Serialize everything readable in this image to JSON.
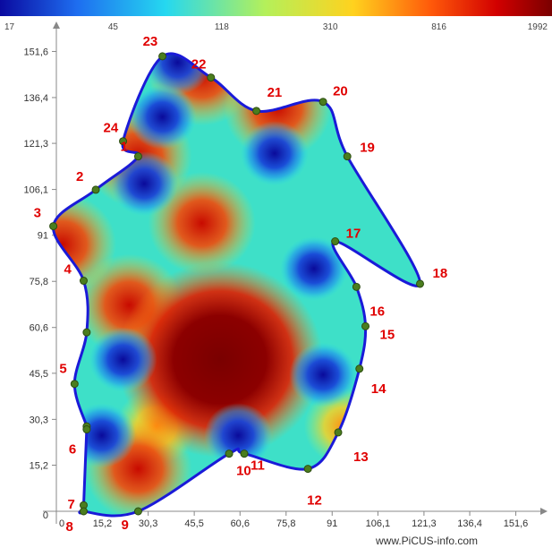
{
  "chart_data": {
    "type": "heatmap",
    "colorbar": {
      "ticks": [
        "17",
        "45",
        "118",
        "310",
        "816",
        "1992"
      ],
      "colors": [
        "#0a0aa0",
        "#1e6ef0",
        "#25d8f0",
        "#b4f05a",
        "#ffd21e",
        "#ff5a0a",
        "#d20000",
        "#7a0000"
      ]
    },
    "x_ticks": [
      0,
      15.2,
      30.3,
      45.5,
      60.6,
      75.8,
      91,
      106.1,
      121.3,
      136.4,
      151.6
    ],
    "x_tick_labels": [
      "0",
      "15,2",
      "30,3",
      "45,5",
      "60,6",
      "75,8",
      "91",
      "106,1",
      "121,3",
      "136,4",
      "151,6"
    ],
    "y_ticks": [
      0,
      15.2,
      30.3,
      45.5,
      60.6,
      75.8,
      91,
      106.1,
      121.3,
      136.4,
      151.6
    ],
    "y_tick_labels": [
      "0",
      "15,2",
      "30,3",
      "45,5",
      "60,6",
      "75,8",
      "91",
      "106,1",
      "121,3",
      "136,4",
      "151,6"
    ],
    "xlim": [
      0,
      160
    ],
    "ylim": [
      0,
      160
    ],
    "boundary_points": [
      {
        "id": "1",
        "x": 27,
        "y": 117
      },
      {
        "id": "2",
        "x": 13,
        "y": 106
      },
      {
        "id": "3",
        "x": -1,
        "y": 94
      },
      {
        "id": "4",
        "x": 9,
        "y": 76
      },
      {
        "id": "",
        "x": 10,
        "y": 59
      },
      {
        "id": "5",
        "x": 6,
        "y": 42
      },
      {
        "id": "",
        "x": 10,
        "y": 28
      },
      {
        "id": "6",
        "x": 10,
        "y": 27
      },
      {
        "id": "7",
        "x": 9,
        "y": 2
      },
      {
        "id": "8",
        "x": 9,
        "y": 0
      },
      {
        "id": "9",
        "x": 27,
        "y": 0
      },
      {
        "id": "10",
        "x": 57,
        "y": 19
      },
      {
        "id": "11",
        "x": 62,
        "y": 19
      },
      {
        "id": "12",
        "x": 83,
        "y": 14
      },
      {
        "id": "13",
        "x": 93,
        "y": 26
      },
      {
        "id": "14",
        "x": 100,
        "y": 47
      },
      {
        "id": "15",
        "x": 102,
        "y": 61
      },
      {
        "id": "16",
        "x": 99,
        "y": 74
      },
      {
        "id": "17",
        "x": 92,
        "y": 89
      },
      {
        "id": "18",
        "x": 120,
        "y": 75
      },
      {
        "id": "19",
        "x": 96,
        "y": 117
      },
      {
        "id": "20",
        "x": 88,
        "y": 135
      },
      {
        "id": "21",
        "x": 66,
        "y": 132
      },
      {
        "id": "22",
        "x": 51,
        "y": 143
      },
      {
        "id": "23",
        "x": 35,
        "y": 150
      },
      {
        "id": "24",
        "x": 22,
        "y": 122
      }
    ],
    "hotspots": [
      {
        "x": 54,
        "y": 50,
        "level": "max"
      },
      {
        "x": 48,
        "y": 95,
        "level": "high"
      },
      {
        "x": 24,
        "y": 68,
        "level": "high"
      },
      {
        "x": 27,
        "y": 14,
        "level": "high"
      },
      {
        "x": 2,
        "y": 88,
        "level": "high"
      },
      {
        "x": 27,
        "y": 117,
        "level": "high"
      },
      {
        "x": 48,
        "y": 144,
        "level": "high"
      },
      {
        "x": 73,
        "y": 133,
        "level": "high"
      },
      {
        "x": 33,
        "y": 28,
        "level": "mid"
      },
      {
        "x": 95,
        "y": 28,
        "level": "mid"
      },
      {
        "x": 85,
        "y": 80,
        "level": "low"
      },
      {
        "x": 88,
        "y": 45,
        "level": "low"
      },
      {
        "x": 22,
        "y": 50,
        "level": "low"
      },
      {
        "x": 15,
        "y": 25,
        "level": "low"
      },
      {
        "x": 35,
        "y": 130,
        "level": "low"
      },
      {
        "x": 29,
        "y": 108,
        "level": "low"
      },
      {
        "x": 72,
        "y": 118,
        "level": "low"
      },
      {
        "x": 60,
        "y": 25,
        "level": "low"
      },
      {
        "x": 40,
        "y": 148,
        "level": "low"
      }
    ]
  },
  "footer": {
    "credit": "www.PiCUS-info.com"
  }
}
